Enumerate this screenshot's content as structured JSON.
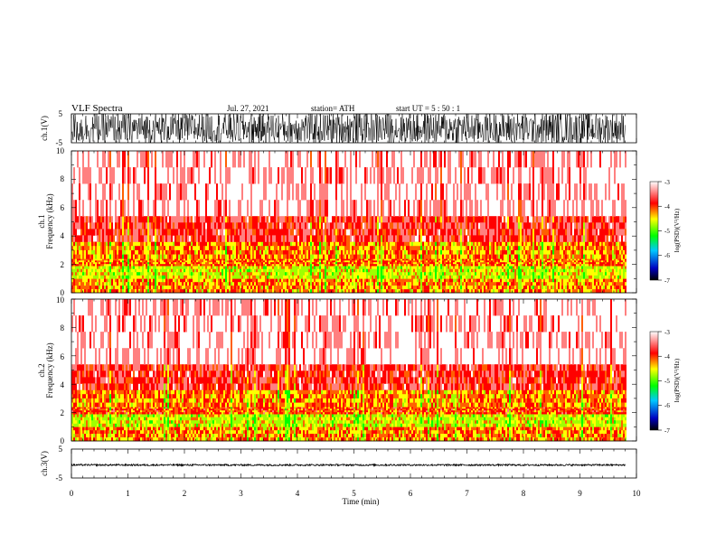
{
  "header": {
    "title": "VLF Spectra",
    "date": "Jul. 27, 2021",
    "station": "station= ATH",
    "start_ut": "start UT =   5 : 50 : 1"
  },
  "chart_data": [
    {
      "id": "ch1-waveform",
      "type": "line",
      "ylabel": "ch.1(V)",
      "yticks": [
        "5",
        "-5"
      ],
      "ylim": [
        -5,
        5
      ],
      "x_range_min": [
        0,
        9.8
      ],
      "description_values": {
        "amplitude_min_V": -5,
        "amplitude_max_V": 5,
        "signal": "broadband noise filling full range"
      }
    },
    {
      "id": "ch1-spectrogram",
      "type": "heatmap",
      "ylabel": "ch.1\nFrequency (kHz)",
      "yticks": [
        "10",
        "8",
        "6",
        "4",
        "2",
        "0"
      ],
      "ylim": [
        0,
        10
      ],
      "x_range_min": [
        0,
        9.8
      ],
      "colorbar": {
        "label": "log(PSD)(V²/Hz)",
        "ticks": [
          "-3",
          "-4",
          "-5",
          "-6",
          "-7"
        ],
        "range": [
          -7,
          -3
        ]
      },
      "bands_khz": [
        {
          "from": 0.0,
          "to": 1.0,
          "level": -4.4
        },
        {
          "from": 1.0,
          "to": 1.9,
          "level": -4.8
        },
        {
          "from": 1.9,
          "to": 2.4,
          "level": -4.3
        },
        {
          "from": 2.4,
          "to": 3.6,
          "level": -4.4
        },
        {
          "from": 3.6,
          "to": 5.4,
          "level": -3.9
        },
        {
          "from": 5.4,
          "to": 10.0,
          "level": -3.4
        }
      ]
    },
    {
      "id": "ch2-spectrogram",
      "type": "heatmap",
      "ylabel": "ch.2\nFrequency (kHz)",
      "yticks": [
        "10",
        "8",
        "6",
        "4",
        "2",
        "0"
      ],
      "ylim": [
        0,
        10
      ],
      "x_range_min": [
        0,
        9.8
      ],
      "colorbar": {
        "label": "log(PSD)(V²/Hz)",
        "ticks": [
          "-3",
          "-4",
          "-5",
          "-6",
          "-7"
        ],
        "range": [
          -7,
          -3
        ]
      },
      "bands_khz": [
        {
          "from": 0.0,
          "to": 1.0,
          "level": -4.4
        },
        {
          "from": 1.0,
          "to": 1.9,
          "level": -4.8
        },
        {
          "from": 1.9,
          "to": 2.4,
          "level": -4.2
        },
        {
          "from": 2.4,
          "to": 3.6,
          "level": -4.4
        },
        {
          "from": 3.6,
          "to": 5.4,
          "level": -3.9
        },
        {
          "from": 5.4,
          "to": 10.0,
          "level": -3.4
        }
      ]
    },
    {
      "id": "ch3-waveform",
      "type": "line",
      "ylabel": "ch.3(V)",
      "yticks": [
        "5",
        "-5"
      ],
      "ylim": [
        -5,
        5
      ],
      "x_range_min": [
        0,
        9.8
      ],
      "description_values": {
        "mean_V": -0.5,
        "amplitude_V": 0.3
      }
    }
  ],
  "xaxis": {
    "label": "Time (min)",
    "ticks": [
      "0",
      "1",
      "2",
      "3",
      "4",
      "5",
      "6",
      "7",
      "8",
      "9",
      "10"
    ],
    "range": [
      0,
      10
    ]
  },
  "colors": {
    "psd_high": "#ffffff",
    "psd_m3_5": "#ff0000",
    "psd_m4": "#ffff00",
    "psd_m5": "#00ff00",
    "psd_m6": "#0000ff",
    "psd_low": "#000000"
  }
}
